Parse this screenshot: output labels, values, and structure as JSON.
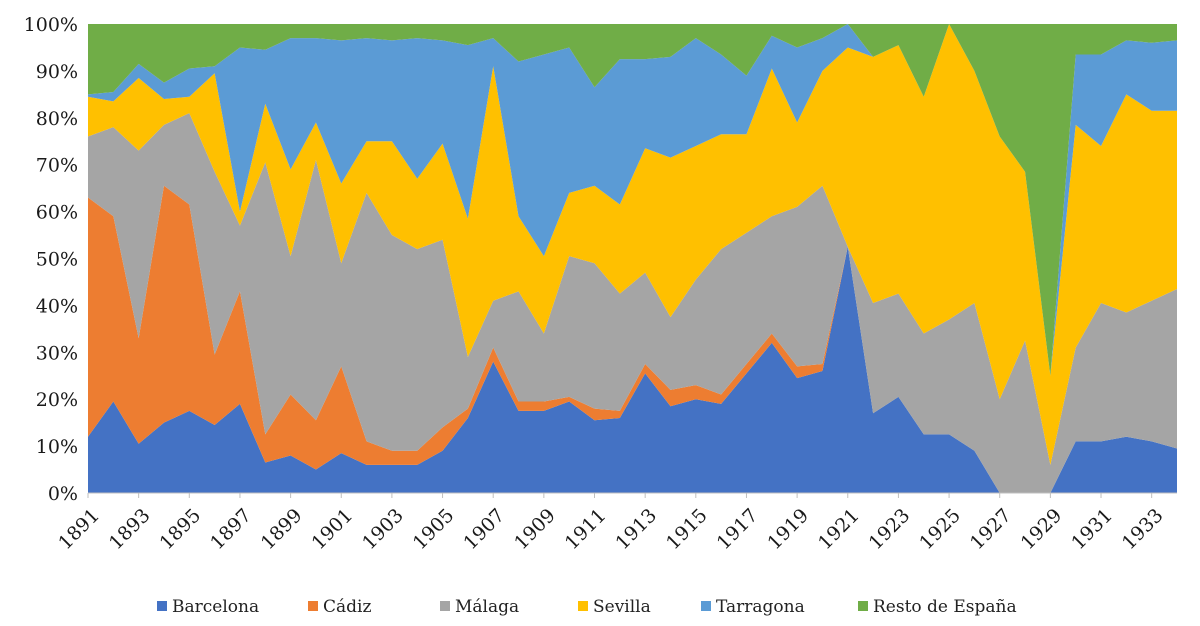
{
  "chart_data": {
    "type": "area",
    "stacked": "percent",
    "title": "",
    "xlabel": "",
    "ylabel": "",
    "ylim": [
      0,
      100
    ],
    "y_ticks": [
      "0%",
      "10%",
      "20%",
      "30%",
      "40%",
      "50%",
      "60%",
      "70%",
      "80%",
      "90%",
      "100%"
    ],
    "x": [
      1891,
      1892,
      1893,
      1894,
      1895,
      1896,
      1897,
      1898,
      1899,
      1900,
      1901,
      1902,
      1903,
      1904,
      1905,
      1906,
      1907,
      1908,
      1909,
      1910,
      1911,
      1912,
      1913,
      1914,
      1915,
      1916,
      1917,
      1918,
      1919,
      1920,
      1921,
      1922,
      1923,
      1924,
      1925,
      1926,
      1927,
      1928,
      1929,
      1930,
      1931,
      1932,
      1933,
      1934
    ],
    "x_tick_labels": [
      "1891",
      "1893",
      "1895",
      "1897",
      "1899",
      "1901",
      "1903",
      "1905",
      "1907",
      "1909",
      "1911",
      "1913",
      "1915",
      "1917",
      "1919",
      "1921",
      "1923",
      "1925",
      "1927",
      "1929",
      "1931",
      "1933"
    ],
    "legend_position": "bottom",
    "series": [
      {
        "name": "Barcelona",
        "color": "#4472C4",
        "values": [
          12,
          19.5,
          10.5,
          15,
          17.5,
          14.5,
          19,
          6.5,
          8,
          5,
          8.5,
          6,
          6,
          6,
          9,
          16,
          28,
          17.5,
          17.5,
          19.5,
          15.5,
          16,
          25.5,
          18.5,
          20,
          19,
          25.5,
          32,
          24.5,
          26,
          52.5,
          17,
          20.5,
          12.5,
          12.5,
          9,
          0,
          0,
          0,
          11,
          11,
          12,
          11,
          9.5
        ]
      },
      {
        "name": "Cádiz",
        "color": "#ED7D31",
        "values": [
          51,
          39.5,
          22.5,
          50.5,
          44,
          15,
          24,
          6,
          13,
          10.5,
          18.5,
          5,
          3,
          3,
          5,
          2,
          3,
          2,
          2,
          1,
          2.5,
          1.5,
          2,
          3.5,
          3,
          2,
          2,
          2,
          2.5,
          1.5,
          0,
          0,
          0,
          0,
          0,
          0,
          0,
          0,
          0,
          0,
          0,
          0,
          0,
          0
        ]
      },
      {
        "name": "Málaga",
        "color": "#A5A5A5",
        "values": [
          13,
          19,
          40,
          13,
          19.5,
          39,
          14,
          58,
          29.5,
          55.5,
          22,
          53,
          46,
          43,
          40,
          11,
          10,
          23.5,
          14.5,
          30,
          31,
          25,
          19.5,
          15.5,
          22.5,
          31,
          28,
          25,
          34,
          38,
          0,
          23.5,
          22,
          21.5,
          24.5,
          31.5,
          20,
          32.5,
          6,
          20,
          29.5,
          26.5,
          30,
          34
        ]
      },
      {
        "name": "Sevilla",
        "color": "#FFC000",
        "values": [
          8.5,
          5.5,
          15.5,
          5.5,
          3.5,
          21,
          3,
          12.5,
          18.5,
          8,
          17,
          11,
          20,
          15,
          20.5,
          29.5,
          50,
          16,
          16.5,
          13.5,
          16.5,
          19,
          26.5,
          34,
          28.5,
          24.5,
          21,
          31.5,
          18,
          24.5,
          42.5,
          52.5,
          53,
          50.5,
          63,
          49.5,
          56,
          36,
          19,
          47.5,
          33.5,
          46.5,
          40.5,
          38
        ]
      },
      {
        "name": "Tarragona",
        "color": "#5B9BD5",
        "values": [
          0.5,
          2,
          3,
          3.5,
          6,
          1.5,
          35,
          11.5,
          28,
          18,
          30.5,
          22,
          21.5,
          30,
          22,
          37,
          6,
          33,
          43,
          31,
          21,
          31,
          19,
          21.5,
          23,
          17,
          12.5,
          7,
          16,
          7,
          5,
          0,
          0,
          0,
          0,
          0,
          0,
          0,
          0,
          15,
          19.5,
          11.5,
          14.5,
          15
        ]
      },
      {
        "name": "Resto de España",
        "color": "#70AD47",
        "values": [
          15,
          14.5,
          8.5,
          12.5,
          9.5,
          9,
          5,
          5.5,
          3,
          3,
          3.5,
          3,
          3.5,
          3,
          3.5,
          4.5,
          3,
          8,
          6.5,
          5,
          13.5,
          7.5,
          7.5,
          7,
          3,
          6.5,
          11,
          2.5,
          5,
          3,
          0,
          7,
          4.5,
          15.5,
          0,
          10,
          24,
          31.5,
          75,
          6.5,
          6.5,
          3.5,
          4,
          3.5
        ]
      }
    ]
  }
}
